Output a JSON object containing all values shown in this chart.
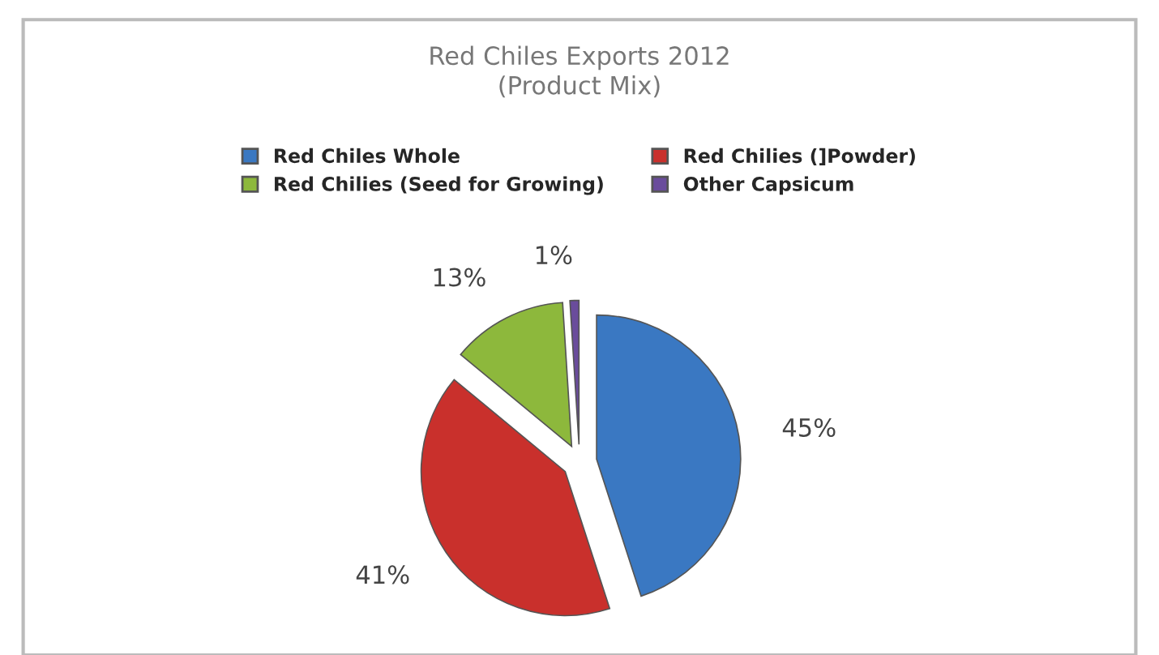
{
  "chart_data": {
    "type": "pie",
    "title": "Red Chiles Exports 2012\n(Product Mix)",
    "categories": [
      "Red Chiles Whole",
      "Red Chilies (]Powder)",
      "Red Chilies (Seed for Growing)",
      "Other Capsicum"
    ],
    "values": [
      45,
      41,
      13,
      1
    ],
    "colors": [
      "#3a78c2",
      "#c9302c",
      "#8db83c",
      "#6a4c9c"
    ],
    "value_labels": [
      "45%",
      "41%",
      "13%",
      "1%"
    ],
    "legend": "top"
  }
}
